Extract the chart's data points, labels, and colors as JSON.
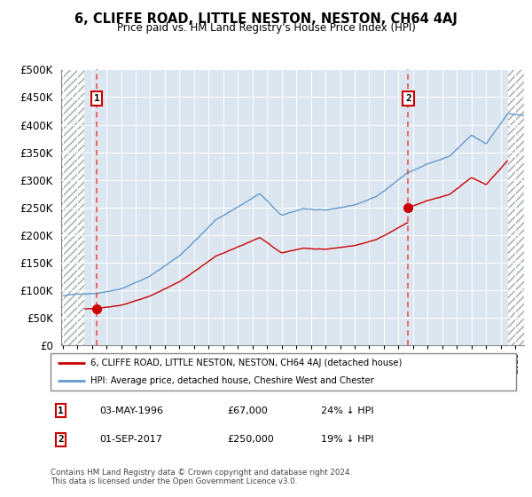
{
  "title": "6, CLIFFE ROAD, LITTLE NESTON, NESTON, CH64 4AJ",
  "subtitle": "Price paid vs. HM Land Registry's House Price Index (HPI)",
  "transactions": [
    {
      "date_num": 1996.33,
      "price": 67000,
      "label": "1",
      "date_str": "03-MAY-1996",
      "pct": "24% ↓ HPI"
    },
    {
      "date_num": 2017.67,
      "price": 250000,
      "label": "2",
      "date_str": "01-SEP-2017",
      "pct": "19% ↓ HPI"
    }
  ],
  "transaction_color": "#cc0000",
  "hpi_color": "#6699cc",
  "vline_color": "#ee4444",
  "bg_color": "#dce6f1",
  "ylim": [
    0,
    500000
  ],
  "yticks": [
    0,
    50000,
    100000,
    150000,
    200000,
    250000,
    300000,
    350000,
    400000,
    450000,
    500000
  ],
  "xlim_start": 1993.9,
  "xlim_end": 2025.6,
  "hatch_left_end": 1995.5,
  "hatch_right_start": 2024.5,
  "legend_line1": "6, CLIFFE ROAD, LITTLE NESTON, NESTON, CH64 4AJ (detached house)",
  "legend_line2": "HPI: Average price, detached house, Cheshire West and Chester",
  "footer": "Contains HM Land Registry data © Crown copyright and database right 2024.\nThis data is licensed under the Open Government Licence v3.0.",
  "table_rows": [
    [
      "1",
      "03-MAY-1996",
      "£67,000",
      "24% ↓ HPI"
    ],
    [
      "2",
      "01-SEP-2017",
      "£250,000",
      "19% ↓ HPI"
    ]
  ]
}
